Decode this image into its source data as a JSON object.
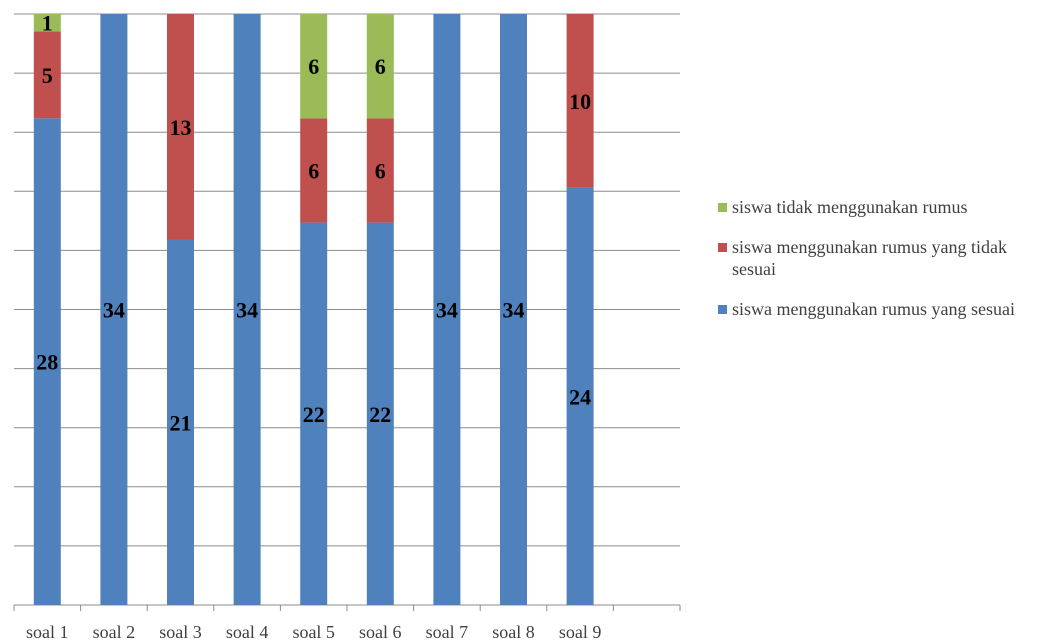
{
  "chart_data": {
    "type": "bar",
    "stacked": true,
    "categories": [
      "soal 1",
      "soal 2",
      "soal 3",
      "soal 4",
      "soal 5",
      "soal 6",
      "soal 7",
      "soal 8",
      "soal 9"
    ],
    "series": [
      {
        "name": "siswa menggunakan rumus yang sesuai",
        "color": "#4F81BD",
        "values": [
          28,
          34,
          21,
          34,
          22,
          22,
          34,
          34,
          24
        ]
      },
      {
        "name": "siswa menggunakan rumus yang tidak sesuai",
        "color": "#C0504D",
        "values": [
          5,
          null,
          13,
          null,
          6,
          6,
          null,
          null,
          10
        ]
      },
      {
        "name": "siswa tidak menggunakan rumus",
        "color": "#9BBB59",
        "values": [
          1,
          null,
          null,
          null,
          6,
          6,
          null,
          null,
          null
        ]
      }
    ],
    "ylim": [
      0,
      34
    ],
    "grid": true,
    "legend_position": "right"
  }
}
